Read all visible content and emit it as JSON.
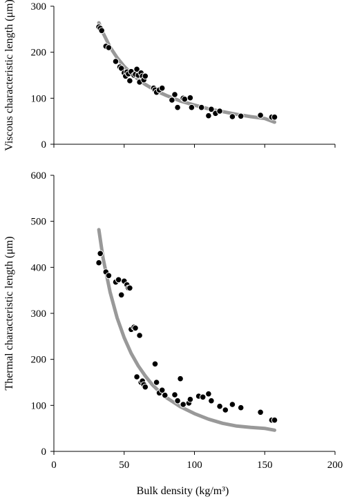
{
  "chart_data": [
    {
      "type": "scatter",
      "ylabel": "Viscous characteristic length (μm)",
      "xlabel": "",
      "xlim": [
        0,
        200
      ],
      "ylim": [
        0,
        300
      ],
      "xticks": [
        "0",
        "50",
        "100",
        "150",
        "200"
      ],
      "yticks": [
        "0",
        "100",
        "200",
        "300"
      ],
      "x_tick_labels_shown": false,
      "colors": {
        "points": "#000000",
        "point_edge": "#ffffff",
        "fit": "#999999"
      },
      "series": [
        {
          "kind": "points",
          "x": [
            32,
            33,
            34,
            37,
            39,
            44,
            47,
            48,
            50,
            51,
            52,
            53,
            54,
            55,
            57,
            58,
            59,
            60,
            61,
            62,
            63,
            64,
            65,
            71,
            72,
            73,
            75,
            77,
            84,
            86,
            88,
            92,
            93,
            97,
            98,
            105,
            110,
            112,
            115,
            118,
            127,
            133,
            147,
            155,
            157
          ],
          "y": [
            255,
            252,
            247,
            213,
            210,
            180,
            168,
            165,
            155,
            148,
            157,
            153,
            138,
            158,
            150,
            152,
            163,
            150,
            135,
            155,
            148,
            140,
            148,
            122,
            118,
            113,
            118,
            122,
            96,
            108,
            80,
            100,
            98,
            101,
            80,
            80,
            62,
            76,
            67,
            72,
            60,
            61,
            63,
            59,
            59
          ]
        },
        {
          "kind": "fit",
          "x": [
            32,
            35,
            40,
            45,
            50,
            55,
            60,
            65,
            70,
            75,
            80,
            90,
            100,
            110,
            120,
            130,
            140,
            150,
            157
          ],
          "y": [
            264,
            242,
            211,
            188,
            169,
            154,
            141,
            130,
            121,
            113,
            106,
            94,
            85,
            77,
            71,
            65,
            60,
            56,
            48
          ]
        }
      ]
    },
    {
      "type": "scatter",
      "ylabel": "Thermal characteristic length (μm)",
      "xlabel": "Bulk density (kg/m³)",
      "xlim": [
        0,
        200
      ],
      "ylim": [
        0,
        600
      ],
      "xticks": [
        "0",
        "50",
        "100",
        "150",
        "200"
      ],
      "yticks": [
        "0",
        "100",
        "200",
        "300",
        "400",
        "500",
        "600"
      ],
      "x_tick_labels_shown": true,
      "colors": {
        "points": "#000000",
        "point_edge": "#ffffff",
        "fit": "#999999"
      },
      "series": [
        {
          "kind": "points",
          "x": [
            32,
            33,
            37,
            39,
            44,
            46,
            48,
            50,
            52,
            53,
            54,
            55,
            57,
            58,
            59,
            61,
            62,
            63,
            64,
            65,
            72,
            73,
            75,
            77,
            79,
            86,
            88,
            90,
            92,
            96,
            97,
            103,
            106,
            110,
            112,
            118,
            122,
            127,
            133,
            147,
            155,
            157
          ],
          "y": [
            410,
            430,
            390,
            382,
            368,
            373,
            340,
            370,
            362,
            355,
            355,
            265,
            270,
            268,
            162,
            252,
            150,
            153,
            145,
            140,
            190,
            150,
            127,
            133,
            122,
            123,
            110,
            158,
            102,
            105,
            113,
            120,
            118,
            125,
            110,
            98,
            90,
            102,
            95,
            85,
            68,
            68
          ]
        },
        {
          "kind": "fit",
          "x": [
            32,
            35,
            40,
            45,
            50,
            55,
            60,
            65,
            70,
            75,
            80,
            90,
            100,
            110,
            120,
            130,
            140,
            150,
            157
          ],
          "y": [
            482,
            420,
            346,
            290,
            247,
            213,
            186,
            164,
            145,
            130,
            117,
            97,
            82,
            70,
            61,
            55,
            52,
            50,
            46
          ]
        }
      ]
    }
  ]
}
